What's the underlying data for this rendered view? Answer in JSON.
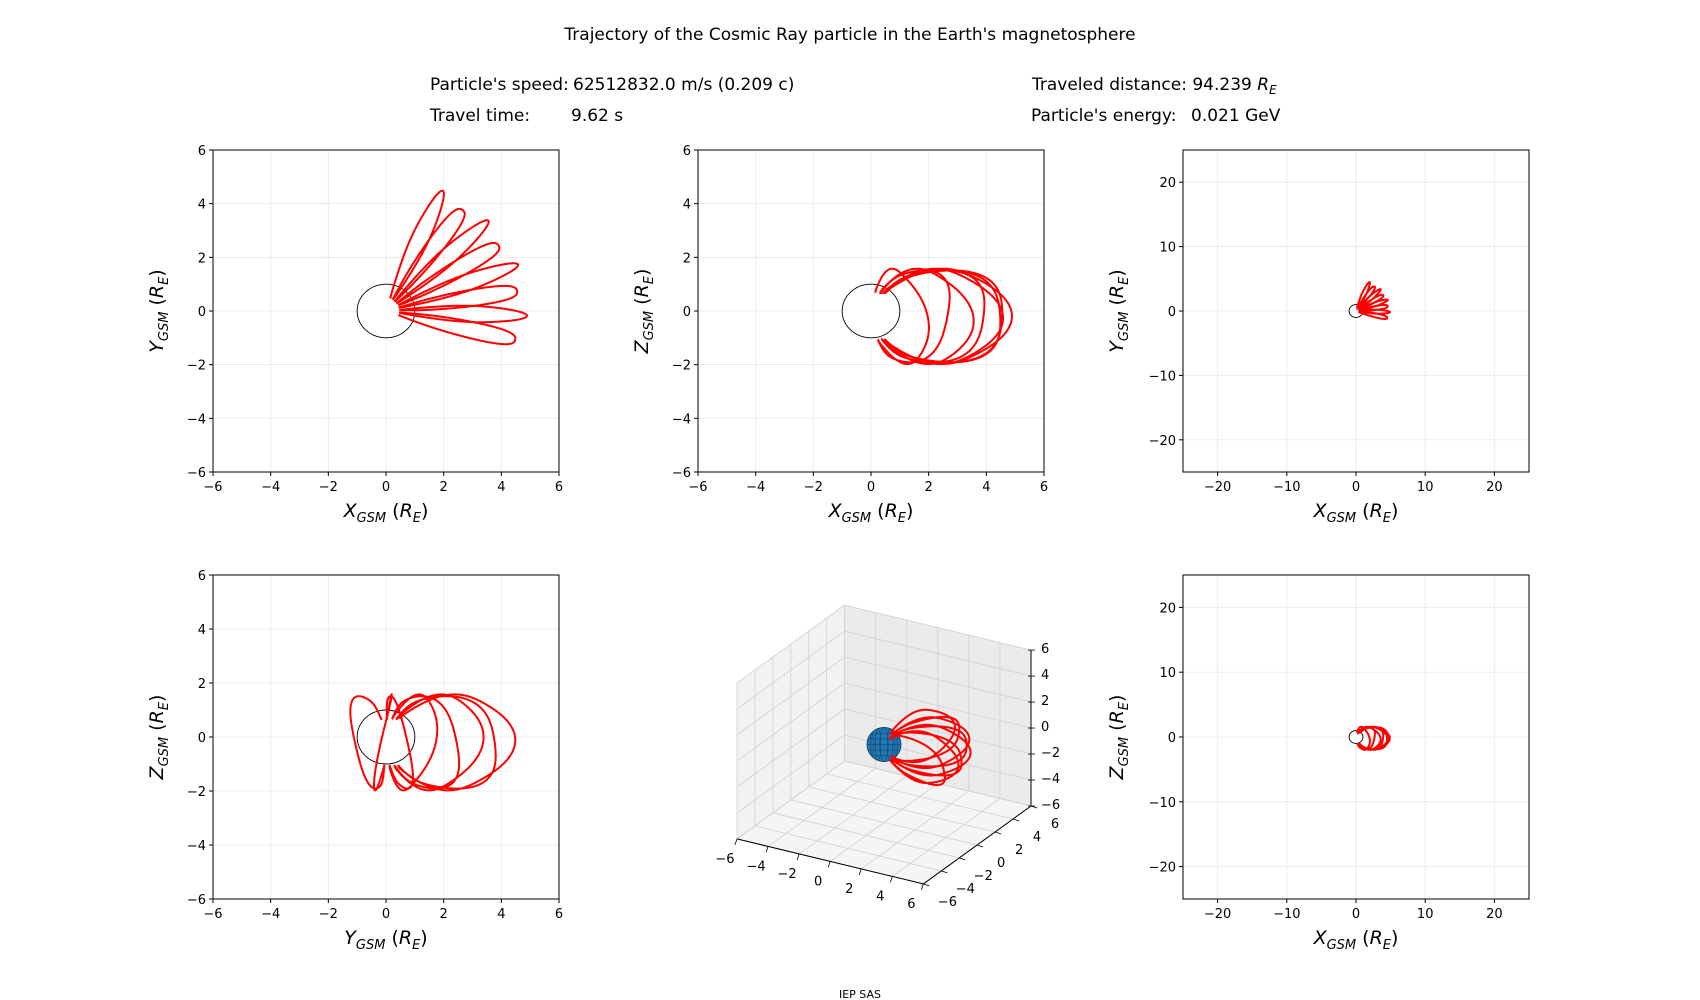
{
  "title": "Trajectory of the Cosmic Ray particle in the Earth's magnetosphere",
  "info": {
    "speed_label": "Particle's speed:",
    "speed_value": "62512832.0 m/s (0.209 c)",
    "time_label": "Travel time:",
    "time_value": "9.62 s",
    "distance_label": "Traveled distance:",
    "distance_value": "94.239",
    "distance_unit": "R",
    "distance_unit_sub": "E",
    "energy_label": "Particle's energy:",
    "energy_value": "0.021 GeV"
  },
  "footer": "IEP SAS",
  "colors": {
    "trajectory": "#ff0000",
    "earth_3d": "#1f77b4",
    "earth_outline": "#000000"
  },
  "chart_data": [
    {
      "type": "line",
      "id": "xy",
      "xlabel": {
        "var": "X",
        "sub": "GSM",
        "unit": "R",
        "unit_sub": "E"
      },
      "ylabel": {
        "var": "Y",
        "sub": "GSM",
        "unit": "R",
        "unit_sub": "E"
      },
      "xlim": [
        -6,
        6
      ],
      "ylim": [
        -6,
        6
      ],
      "xticks": [
        "−6",
        "−4",
        "−2",
        "0",
        "2",
        "4",
        "6"
      ],
      "yticks": [
        "−6",
        "−4",
        "−2",
        "0",
        "2",
        "4",
        "6"
      ],
      "xtick_values": [
        -6,
        -4,
        -2,
        0,
        2,
        4,
        6
      ],
      "ytick_values": [
        -6,
        -4,
        -2,
        0,
        2,
        4,
        6
      ],
      "grid": true,
      "projection": [
        "x",
        "y"
      ]
    },
    {
      "type": "line",
      "id": "xz",
      "xlabel": {
        "var": "X",
        "sub": "GSM",
        "unit": "R",
        "unit_sub": "E"
      },
      "ylabel": {
        "var": "Z",
        "sub": "GSM",
        "unit": "R",
        "unit_sub": "E"
      },
      "xlim": [
        -6,
        6
      ],
      "ylim": [
        -6,
        6
      ],
      "xticks": [
        "−6",
        "−4",
        "−2",
        "0",
        "2",
        "4",
        "6"
      ],
      "yticks": [
        "−6",
        "−4",
        "−2",
        "0",
        "2",
        "4",
        "6"
      ],
      "xtick_values": [
        -6,
        -4,
        -2,
        0,
        2,
        4,
        6
      ],
      "ytick_values": [
        -6,
        -4,
        -2,
        0,
        2,
        4,
        6
      ],
      "grid": true,
      "projection": [
        "x",
        "z"
      ]
    },
    {
      "type": "line",
      "id": "xy-wide",
      "xlabel": {
        "var": "X",
        "sub": "GSM",
        "unit": "R",
        "unit_sub": "E"
      },
      "ylabel": {
        "var": "Y",
        "sub": "GSM",
        "unit": "R",
        "unit_sub": "E"
      },
      "xlim": [
        -25,
        25
      ],
      "ylim": [
        -25,
        25
      ],
      "xticks": [
        "−20",
        "−10",
        "0",
        "10",
        "20"
      ],
      "yticks": [
        "−20",
        "−10",
        "0",
        "10",
        "20"
      ],
      "xtick_values": [
        -20,
        -10,
        0,
        10,
        20
      ],
      "ytick_values": [
        -20,
        -10,
        0,
        10,
        20
      ],
      "grid": true,
      "projection": [
        "x",
        "y"
      ]
    },
    {
      "type": "line",
      "id": "yz",
      "xlabel": {
        "var": "Y",
        "sub": "GSM",
        "unit": "R",
        "unit_sub": "E"
      },
      "ylabel": {
        "var": "Z",
        "sub": "GSM",
        "unit": "R",
        "unit_sub": "E"
      },
      "xlim": [
        -6,
        6
      ],
      "ylim": [
        -6,
        6
      ],
      "xticks": [
        "−6",
        "−4",
        "−2",
        "0",
        "2",
        "4",
        "6"
      ],
      "yticks": [
        "−6",
        "−4",
        "−2",
        "0",
        "2",
        "4",
        "6"
      ],
      "xtick_values": [
        -6,
        -4,
        -2,
        0,
        2,
        4,
        6
      ],
      "ytick_values": [
        -6,
        -4,
        -2,
        0,
        2,
        4,
        6
      ],
      "grid": true,
      "projection": [
        "y",
        "z"
      ]
    },
    {
      "type": "line3d",
      "id": "3d",
      "xlim": [
        -6,
        6
      ],
      "ylim": [
        -6,
        6
      ],
      "zlim": [
        -6,
        6
      ],
      "ticks": [
        "−6",
        "−4",
        "−2",
        "0",
        "2",
        "4",
        "6"
      ],
      "tick_values": [
        -6,
        -4,
        -2,
        0,
        2,
        4,
        6
      ],
      "grid": true
    },
    {
      "type": "line",
      "id": "xz-wide",
      "xlabel": {
        "var": "X",
        "sub": "GSM",
        "unit": "R",
        "unit_sub": "E"
      },
      "ylabel": {
        "var": "Z",
        "sub": "GSM",
        "unit": "R",
        "unit_sub": "E"
      },
      "xlim": [
        -25,
        25
      ],
      "ylim": [
        -25,
        25
      ],
      "xticks": [
        "−20",
        "−10",
        "0",
        "10",
        "20"
      ],
      "yticks": [
        "−20",
        "−10",
        "0",
        "10",
        "20"
      ],
      "xtick_values": [
        -20,
        -10,
        0,
        10,
        20
      ],
      "ytick_values": [
        -20,
        -10,
        0,
        10,
        20
      ],
      "grid": true,
      "projection": [
        "x",
        "z"
      ]
    }
  ]
}
